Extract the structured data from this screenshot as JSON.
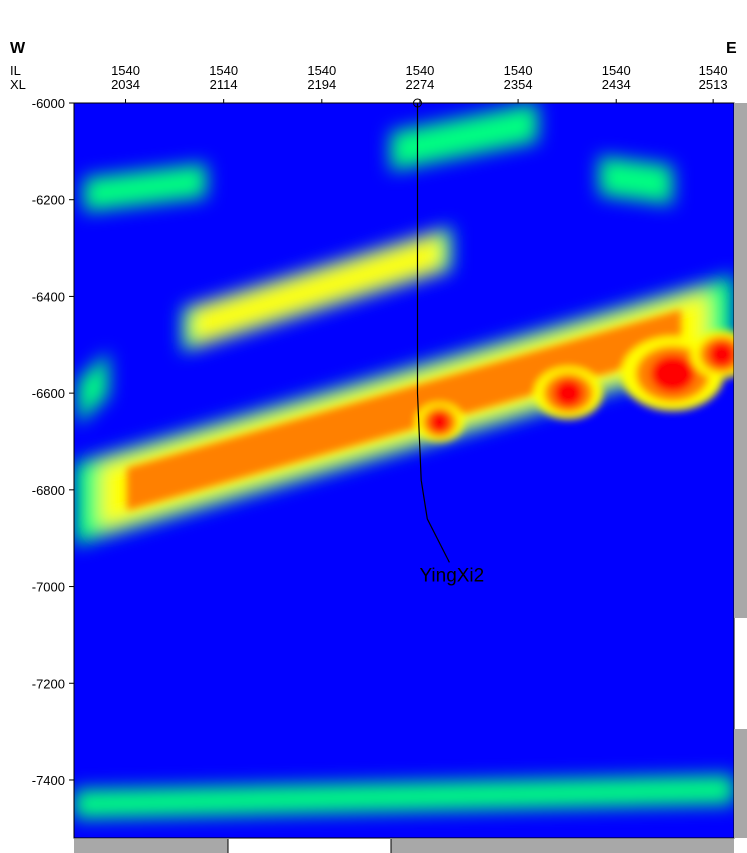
{
  "header": {
    "west_label": "W",
    "east_label": "E",
    "row1_label": "IL",
    "row2_label": "XL"
  },
  "chart_data": {
    "type": "heatmap",
    "description_visible": false,
    "inline": 1540,
    "x_ticks": [
      {
        "il": "1540",
        "xl": "2034",
        "xl_value": 2034
      },
      {
        "il": "1540",
        "xl": "2114",
        "xl_value": 2114
      },
      {
        "il": "1540",
        "xl": "2194",
        "xl_value": 2194
      },
      {
        "il": "1540",
        "xl": "2274",
        "xl_value": 2274
      },
      {
        "il": "1540",
        "xl": "2354",
        "xl_value": 2354
      },
      {
        "il": "1540",
        "xl": "2434",
        "xl_value": 2434
      },
      {
        "il": "1540",
        "xl": "2513",
        "xl_value": 2513
      }
    ],
    "xlim": [
      1992,
      2530
    ],
    "y_ticks": [
      {
        "label": "-6000",
        "value": -6000
      },
      {
        "label": "-6200",
        "value": -6200
      },
      {
        "label": "-6400",
        "value": -6400
      },
      {
        "label": "-6600",
        "value": -6600
      },
      {
        "label": "-6800",
        "value": -6800
      },
      {
        "label": "-7000",
        "value": -7000
      },
      {
        "label": "-7200",
        "value": -7200
      },
      {
        "label": "-7400",
        "value": -7400
      }
    ],
    "ylim": [
      -6000,
      -7520
    ],
    "colormap": [
      "#0000ff",
      "#00e0ff",
      "#00ff80",
      "#ffff00",
      "#ff8000",
      "#ff0000"
    ],
    "background_color": "#0000ff",
    "anomalies": [
      {
        "name": "lower-band",
        "x1": 1992,
        "y1": -6830,
        "x2": 2530,
        "y2": -6440,
        "half_thickness": 85,
        "intensity": 0.78
      },
      {
        "name": "upper-lens",
        "x1": 2080,
        "y1": -6470,
        "x2": 2300,
        "y2": -6300,
        "half_thickness": 45,
        "intensity": 0.62
      },
      {
        "name": "top-left-patch",
        "x1": 2000,
        "y1": -6190,
        "x2": 2100,
        "y2": -6160,
        "half_thickness": 35,
        "intensity": 0.4
      },
      {
        "name": "top-center-patch",
        "x1": 2250,
        "y1": -6100,
        "x2": 2370,
        "y2": -6040,
        "half_thickness": 40,
        "intensity": 0.42
      },
      {
        "name": "top-right-patch",
        "x1": 2420,
        "y1": -6150,
        "x2": 2480,
        "y2": -6170,
        "half_thickness": 40,
        "intensity": 0.38
      },
      {
        "name": "left-edge-lobe",
        "x1": 1995,
        "y1": -6620,
        "x2": 2020,
        "y2": -6560,
        "half_thickness": 45,
        "intensity": 0.42
      },
      {
        "name": "bottom-band",
        "x1": 1992,
        "y1": -7450,
        "x2": 2530,
        "y2": -7420,
        "half_thickness": 30,
        "intensity": 0.32
      },
      {
        "name": "hot-spot-1",
        "x": 2480,
        "y": -6560,
        "radius": 30,
        "intensity": 0.98
      },
      {
        "name": "hot-spot-2",
        "x": 2395,
        "y": -6600,
        "radius": 20,
        "intensity": 0.95
      },
      {
        "name": "hot-spot-3",
        "x": 2290,
        "y": -6660,
        "radius": 14,
        "intensity": 0.9
      },
      {
        "name": "hot-spot-4",
        "x": 2520,
        "y": -6520,
        "radius": 18,
        "intensity": 0.92
      },
      {
        "name": "drip",
        "x": 2303,
        "y": -6920,
        "radius": 35,
        "intensity": 0.35
      }
    ],
    "well": {
      "name": "YingXi2",
      "path": [
        [
          2272,
          -6000
        ],
        [
          2272,
          -6200
        ],
        [
          2272,
          -6600
        ],
        [
          2275,
          -6780
        ],
        [
          2280,
          -6860
        ],
        [
          2298,
          -6950
        ]
      ],
      "label_position": [
        2300,
        -6990
      ]
    }
  }
}
